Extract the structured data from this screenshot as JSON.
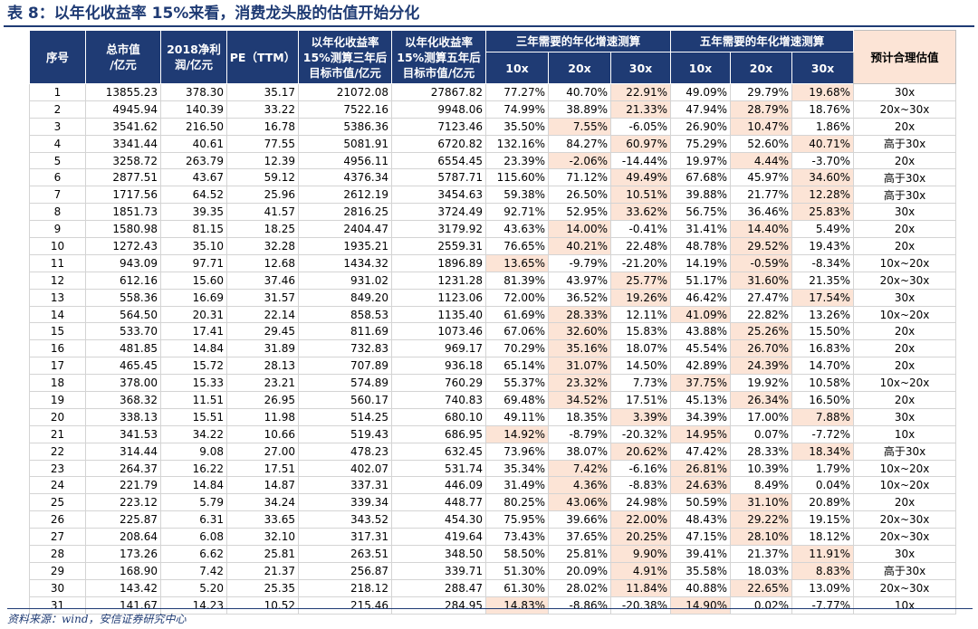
{
  "title": "表 8：以年化收益率 15%来看，消费龙头股的估值开始分化",
  "source": "资料来源：wind，安信证券研究中心",
  "header": {
    "seq": "序号",
    "mktcap": "总市值/亿元",
    "profit": "2018净利润/亿元",
    "pe": "PE（TTM）",
    "target3": "以年化收益率15%测算三年后目标市值/亿元",
    "target5": "以年化收益率15%测算五年后目标市值/亿元",
    "group3": "三年需要的年化增速测算",
    "group5": "五年需要的年化增速测算",
    "est": "预计合理估值",
    "sub": [
      "10x",
      "20x",
      "30x",
      "10x",
      "20x",
      "30x"
    ]
  },
  "rows": [
    {
      "id": "1",
      "mktcap": "13855.23",
      "profit": "378.30",
      "pe": "35.17",
      "t3": "21072.08",
      "t5": "27867.82",
      "g": [
        "77.27%",
        "40.70%",
        "22.91%",
        "49.09%",
        "29.79%",
        "19.68%"
      ],
      "hl": [
        2,
        5
      ],
      "est": "30x"
    },
    {
      "id": "2",
      "mktcap": "4945.94",
      "profit": "140.39",
      "pe": "33.22",
      "t3": "7522.16",
      "t5": "9948.06",
      "g": [
        "74.99%",
        "38.89%",
        "21.33%",
        "47.94%",
        "28.79%",
        "18.76%"
      ],
      "hl": [
        2,
        4
      ],
      "est": "20x~30x"
    },
    {
      "id": "3",
      "mktcap": "3541.62",
      "profit": "216.50",
      "pe": "16.78",
      "t3": "5386.36",
      "t5": "7123.46",
      "g": [
        "35.50%",
        "7.55%",
        "-6.05%",
        "26.90%",
        "10.47%",
        "1.86%"
      ],
      "hl": [
        1,
        4
      ],
      "est": "20x"
    },
    {
      "id": "4",
      "mktcap": "3341.44",
      "profit": "40.61",
      "pe": "77.55",
      "t3": "5081.91",
      "t5": "6720.82",
      "g": [
        "132.16%",
        "84.27%",
        "60.97%",
        "75.29%",
        "52.60%",
        "40.71%"
      ],
      "hl": [
        2,
        5
      ],
      "est": "高于30x"
    },
    {
      "id": "5",
      "mktcap": "3258.72",
      "profit": "263.79",
      "pe": "12.39",
      "t3": "4956.11",
      "t5": "6554.45",
      "g": [
        "23.39%",
        "-2.06%",
        "-14.44%",
        "19.97%",
        "4.44%",
        "-3.70%"
      ],
      "hl": [
        1,
        4
      ],
      "est": "20x"
    },
    {
      "id": "6",
      "mktcap": "2877.51",
      "profit": "43.67",
      "pe": "59.12",
      "t3": "4376.34",
      "t5": "5787.71",
      "g": [
        "115.60%",
        "71.12%",
        "49.49%",
        "67.68%",
        "45.97%",
        "34.60%"
      ],
      "hl": [
        2,
        5
      ],
      "est": "高于30x"
    },
    {
      "id": "7",
      "mktcap": "1717.56",
      "profit": "64.52",
      "pe": "25.96",
      "t3": "2612.19",
      "t5": "3454.63",
      "g": [
        "59.38%",
        "26.50%",
        "10.51%",
        "39.88%",
        "21.77%",
        "12.28%"
      ],
      "hl": [
        2,
        5
      ],
      "est": "高于30x"
    },
    {
      "id": "8",
      "mktcap": "1851.73",
      "profit": "39.35",
      "pe": "41.57",
      "t3": "2816.25",
      "t5": "3724.49",
      "g": [
        "92.71%",
        "52.95%",
        "33.62%",
        "56.75%",
        "36.46%",
        "25.83%"
      ],
      "hl": [
        2,
        5
      ],
      "est": "30x"
    },
    {
      "id": "9",
      "mktcap": "1580.98",
      "profit": "81.15",
      "pe": "18.25",
      "t3": "2404.47",
      "t5": "3179.92",
      "g": [
        "43.63%",
        "14.00%",
        "-0.41%",
        "31.41%",
        "14.40%",
        "5.49%"
      ],
      "hl": [
        1,
        4
      ],
      "est": "20x"
    },
    {
      "id": "10",
      "mktcap": "1272.43",
      "profit": "35.10",
      "pe": "32.28",
      "t3": "1935.21",
      "t5": "2559.31",
      "g": [
        "76.65%",
        "40.21%",
        "22.48%",
        "48.78%",
        "29.52%",
        "19.43%"
      ],
      "hl": [
        1,
        4
      ],
      "est": "20x"
    },
    {
      "id": "11",
      "mktcap": "943.09",
      "profit": "97.71",
      "pe": "12.68",
      "t3": "1434.32",
      "t5": "1896.89",
      "g": [
        "13.65%",
        "-9.79%",
        "-21.20%",
        "14.19%",
        "-0.59%",
        "-8.34%"
      ],
      "hl": [
        0,
        4
      ],
      "est": "10x~20x"
    },
    {
      "id": "12",
      "mktcap": "612.16",
      "profit": "15.60",
      "pe": "37.46",
      "t3": "931.02",
      "t5": "1231.28",
      "g": [
        "81.39%",
        "43.97%",
        "25.77%",
        "51.17%",
        "31.60%",
        "21.35%"
      ],
      "hl": [
        2,
        4
      ],
      "est": "20x~30x"
    },
    {
      "id": "13",
      "mktcap": "558.36",
      "profit": "16.69",
      "pe": "31.57",
      "t3": "849.20",
      "t5": "1123.06",
      "g": [
        "72.00%",
        "36.52%",
        "19.26%",
        "46.42%",
        "27.47%",
        "17.54%"
      ],
      "hl": [
        2,
        5
      ],
      "est": "30x"
    },
    {
      "id": "14",
      "mktcap": "564.50",
      "profit": "20.31",
      "pe": "22.14",
      "t3": "858.53",
      "t5": "1135.40",
      "g": [
        "61.69%",
        "28.33%",
        "12.11%",
        "41.09%",
        "22.82%",
        "13.26%"
      ],
      "hl": [
        1,
        3
      ],
      "est": "10x~20x"
    },
    {
      "id": "15",
      "mktcap": "533.70",
      "profit": "17.41",
      "pe": "29.45",
      "t3": "811.69",
      "t5": "1073.46",
      "g": [
        "67.06%",
        "32.60%",
        "15.83%",
        "43.88%",
        "25.26%",
        "15.50%"
      ],
      "hl": [
        1,
        4
      ],
      "est": "20x"
    },
    {
      "id": "16",
      "mktcap": "481.85",
      "profit": "14.84",
      "pe": "31.89",
      "t3": "732.83",
      "t5": "969.17",
      "g": [
        "70.29%",
        "35.16%",
        "18.07%",
        "45.54%",
        "26.70%",
        "16.83%"
      ],
      "hl": [
        1,
        4
      ],
      "est": "20x"
    },
    {
      "id": "17",
      "mktcap": "465.45",
      "profit": "15.72",
      "pe": "28.13",
      "t3": "707.89",
      "t5": "936.18",
      "g": [
        "65.14%",
        "31.07%",
        "14.50%",
        "42.89%",
        "24.39%",
        "14.70%"
      ],
      "hl": [
        1,
        4
      ],
      "est": "20x"
    },
    {
      "id": "18",
      "mktcap": "378.00",
      "profit": "15.33",
      "pe": "23.21",
      "t3": "574.89",
      "t5": "760.29",
      "g": [
        "55.37%",
        "23.32%",
        "7.73%",
        "37.75%",
        "19.92%",
        "10.58%"
      ],
      "hl": [
        1,
        3
      ],
      "est": "10x~20x"
    },
    {
      "id": "19",
      "mktcap": "368.32",
      "profit": "11.51",
      "pe": "26.95",
      "t3": "560.17",
      "t5": "740.83",
      "g": [
        "69.48%",
        "34.52%",
        "17.51%",
        "45.13%",
        "26.34%",
        "16.50%"
      ],
      "hl": [
        1,
        4
      ],
      "est": "20x"
    },
    {
      "id": "20",
      "mktcap": "338.13",
      "profit": "15.51",
      "pe": "11.98",
      "t3": "514.25",
      "t5": "680.10",
      "g": [
        "49.11%",
        "18.35%",
        "3.39%",
        "34.39%",
        "17.00%",
        "7.88%"
      ],
      "hl": [
        2,
        5
      ],
      "est": "30x"
    },
    {
      "id": "21",
      "mktcap": "341.53",
      "profit": "34.22",
      "pe": "10.66",
      "t3": "519.43",
      "t5": "686.95",
      "g": [
        "14.92%",
        "-8.79%",
        "-20.32%",
        "14.95%",
        "0.07%",
        "-7.72%"
      ],
      "hl": [
        0,
        3
      ],
      "est": "10x"
    },
    {
      "id": "22",
      "mktcap": "314.44",
      "profit": "9.08",
      "pe": "27.00",
      "t3": "478.23",
      "t5": "632.45",
      "g": [
        "73.96%",
        "38.07%",
        "20.62%",
        "47.42%",
        "28.33%",
        "18.34%"
      ],
      "hl": [
        2,
        5
      ],
      "est": "高于30x"
    },
    {
      "id": "23",
      "mktcap": "264.37",
      "profit": "16.22",
      "pe": "17.51",
      "t3": "402.07",
      "t5": "531.74",
      "g": [
        "35.34%",
        "7.42%",
        "-6.16%",
        "26.81%",
        "10.39%",
        "1.79%"
      ],
      "hl": [
        1,
        3
      ],
      "est": "10x~20x"
    },
    {
      "id": "24",
      "mktcap": "221.79",
      "profit": "14.84",
      "pe": "14.87",
      "t3": "337.31",
      "t5": "446.09",
      "g": [
        "31.49%",
        "4.36%",
        "-8.83%",
        "24.63%",
        "8.49%",
        "0.04%"
      ],
      "hl": [
        1,
        3
      ],
      "est": "10x~20x"
    },
    {
      "id": "25",
      "mktcap": "223.12",
      "profit": "5.79",
      "pe": "34.24",
      "t3": "339.34",
      "t5": "448.77",
      "g": [
        "80.25%",
        "43.06%",
        "24.98%",
        "50.59%",
        "31.10%",
        "20.89%"
      ],
      "hl": [
        1,
        4
      ],
      "est": "20x"
    },
    {
      "id": "26",
      "mktcap": "225.87",
      "profit": "6.31",
      "pe": "33.65",
      "t3": "343.52",
      "t5": "454.30",
      "g": [
        "75.95%",
        "39.66%",
        "22.00%",
        "48.43%",
        "29.22%",
        "19.15%"
      ],
      "hl": [
        2,
        4
      ],
      "est": "20x~30x"
    },
    {
      "id": "27",
      "mktcap": "208.64",
      "profit": "6.08",
      "pe": "32.10",
      "t3": "317.31",
      "t5": "419.64",
      "g": [
        "73.43%",
        "37.65%",
        "20.25%",
        "47.15%",
        "28.10%",
        "18.12%"
      ],
      "hl": [
        2,
        4
      ],
      "est": "20x~30x"
    },
    {
      "id": "28",
      "mktcap": "173.26",
      "profit": "6.62",
      "pe": "25.81",
      "t3": "263.51",
      "t5": "348.50",
      "g": [
        "58.50%",
        "25.81%",
        "9.90%",
        "39.41%",
        "21.37%",
        "11.91%"
      ],
      "hl": [
        2,
        5
      ],
      "est": "30x"
    },
    {
      "id": "29",
      "mktcap": "168.90",
      "profit": "7.42",
      "pe": "21.37",
      "t3": "256.87",
      "t5": "339.71",
      "g": [
        "51.30%",
        "20.09%",
        "4.91%",
        "35.58%",
        "18.03%",
        "8.83%"
      ],
      "hl": [
        2,
        5
      ],
      "est": "高于30x"
    },
    {
      "id": "30",
      "mktcap": "143.42",
      "profit": "5.20",
      "pe": "25.35",
      "t3": "218.12",
      "t5": "288.47",
      "g": [
        "61.30%",
        "28.02%",
        "11.84%",
        "40.88%",
        "22.65%",
        "13.09%"
      ],
      "hl": [
        2,
        4
      ],
      "est": "20x~30x"
    },
    {
      "id": "31",
      "mktcap": "141.67",
      "profit": "14.23",
      "pe": "10.52",
      "t3": "215.46",
      "t5": "284.95",
      "g": [
        "14.83%",
        "-8.86%",
        "-20.38%",
        "14.90%",
        "0.02%",
        "-7.77%"
      ],
      "hl": [
        0,
        3
      ],
      "est": "10x"
    }
  ]
}
